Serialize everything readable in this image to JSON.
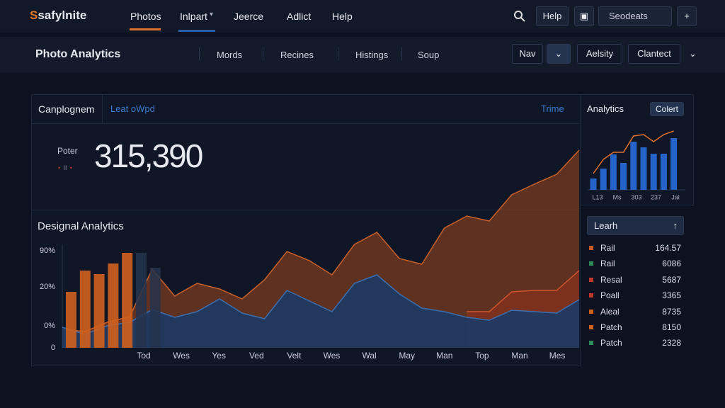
{
  "header": {
    "logo_mark": "S",
    "logo_text": "safylnite",
    "nav": [
      "Photos",
      "Inlpart",
      "Jeerce",
      "Adlict",
      "Help"
    ],
    "help_button": "Help",
    "search_placeholder": "Seodeats"
  },
  "toolbar": {
    "title": "Photo Analytics",
    "tabs": [
      "Mords",
      "Recines",
      "Histings",
      "Soup"
    ],
    "buttons": [
      "Nav",
      "Aelsity",
      "Clantect"
    ]
  },
  "panel": {
    "tabs": [
      "Canplognem",
      "Leat oWpd"
    ],
    "link": "Trime",
    "stat_label": "Poter",
    "stat_value": "315,390",
    "chart": {
      "title": "Designal Analytics",
      "y_labels": [
        "90%",
        "20%",
        "0%",
        "0"
      ],
      "x_labels": [
        "Tod",
        "Wes",
        "Yes",
        "Ved",
        "Velt",
        "Wes",
        "Wal",
        "May",
        "Man",
        "Top",
        "Man",
        "Mes"
      ],
      "ylim": [
        0,
        300
      ],
      "series": [
        {
          "color": "#c8602a",
          "values": [
            26,
            23,
            36,
            44,
            111,
            73,
            91,
            83,
            69,
            96,
            136,
            123,
            103,
            146,
            163,
            126,
            118,
            169,
            186,
            179,
            216,
            231,
            245,
            279
          ]
        },
        {
          "color": "#d0552a",
          "values": [
            null,
            null,
            null,
            null,
            null,
            null,
            null,
            null,
            null,
            null,
            null,
            null,
            null,
            null,
            null,
            null,
            null,
            null,
            51,
            51,
            79,
            81,
            81,
            109
          ]
        },
        {
          "color": "#3b6fb0",
          "values": [
            29,
            19,
            31,
            36,
            54,
            43,
            51,
            69,
            49,
            41,
            81,
            66,
            51,
            91,
            103,
            76,
            56,
            51,
            43,
            39,
            53,
            51,
            49,
            68
          ]
        }
      ],
      "bars": {
        "values": [
          79,
          109,
          104,
          119,
          134,
          134,
          113
        ],
        "colors": [
          "#d0601e",
          "#d0601e",
          "#d0601e",
          "#d0601e",
          "#d0601e",
          "#24344e",
          "#24344e"
        ]
      }
    }
  },
  "side": {
    "title": "Analytics",
    "button": "Colert",
    "mini_chart": {
      "ylim": [
        0,
        100
      ],
      "bars": [
        16,
        30,
        50,
        38,
        68,
        60,
        51,
        51,
        73
      ],
      "bar_color": "#2563c9",
      "line": [
        23,
        43,
        53,
        53,
        76,
        78,
        68,
        78,
        83
      ],
      "line_color": "#e0702a",
      "x_labels": [
        "L13",
        "Ms",
        "303",
        "237",
        "Jal"
      ]
    },
    "list_button": "Learh",
    "items": [
      {
        "name": "Rail",
        "value": "164.57",
        "color": "#c85a2a"
      },
      {
        "name": "Rail",
        "value": "6086",
        "color": "#2f8a5a"
      },
      {
        "name": "Resal",
        "value": "5687",
        "color": "#c0392b"
      },
      {
        "name": "Poall",
        "value": "3365",
        "color": "#c0392b"
      },
      {
        "name": "Aleal",
        "value": "8735",
        "color": "#d0601e"
      },
      {
        "name": "Patch",
        "value": "8150",
        "color": "#d0601e"
      },
      {
        "name": "Patch",
        "value": "2328",
        "color": "#2f8a5a"
      }
    ]
  }
}
